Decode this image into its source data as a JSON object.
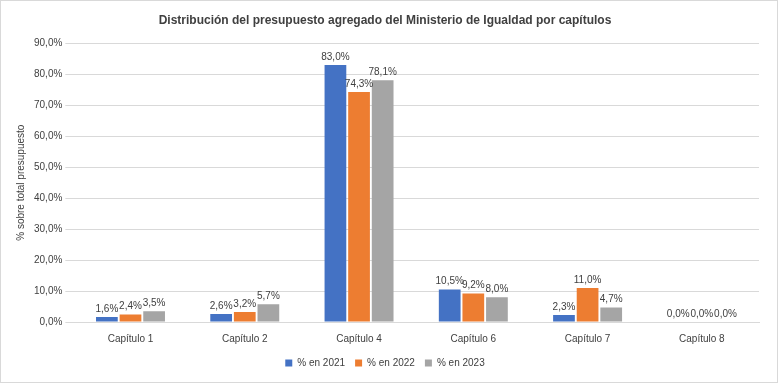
{
  "chart_data": {
    "type": "bar",
    "title": "Distribución del presupuesto agregado del Ministerio de Igualdad por capítulos",
    "y_label": "% sobre total presupuesto",
    "categories": [
      "Capítulo 1",
      "Capítulo 2",
      "Capítulo 4",
      "Capítulo 6",
      "Capítulo 7",
      "Capítulo 8"
    ],
    "series": [
      {
        "name": "% en 2021",
        "color": "#4472c4",
        "values": [
          1.6,
          2.6,
          83.0,
          10.5,
          2.3,
          0.0
        ],
        "value_labels": [
          "1,6%",
          "2,6%",
          "83,0%",
          "10,5%",
          "2,3%",
          "0,0%"
        ]
      },
      {
        "name": "% en 2022",
        "color": "#ed7d31",
        "values": [
          2.4,
          3.2,
          74.3,
          9.2,
          11.0,
          0.0
        ],
        "value_labels": [
          "2,4%",
          "3,2%",
          "74,3%",
          "9,2%",
          "11,0%",
          "0,0%"
        ]
      },
      {
        "name": "% en 2023",
        "color": "#a5a5a5",
        "values": [
          3.5,
          5.7,
          78.1,
          8.0,
          4.7,
          0.0
        ],
        "value_labels": [
          "3,5%",
          "5,7%",
          "78,1%",
          "8,0%",
          "4,7%",
          "0,0%"
        ]
      }
    ],
    "ylim": [
      0,
      90
    ],
    "yticks": [
      {
        "value": 0,
        "label": "0,0%"
      },
      {
        "value": 10,
        "label": "10,0%"
      },
      {
        "value": 20,
        "label": "20,0%"
      },
      {
        "value": 30,
        "label": "30,0%"
      },
      {
        "value": 40,
        "label": "40,0%"
      },
      {
        "value": 50,
        "label": "50,0%"
      },
      {
        "value": 60,
        "label": "60,0%"
      },
      {
        "value": 70,
        "label": "70,0%"
      },
      {
        "value": 80,
        "label": "80,0%"
      },
      {
        "value": 90,
        "label": "90,0%"
      }
    ],
    "grid": true,
    "legend": "bottom",
    "data_labels": true
  }
}
